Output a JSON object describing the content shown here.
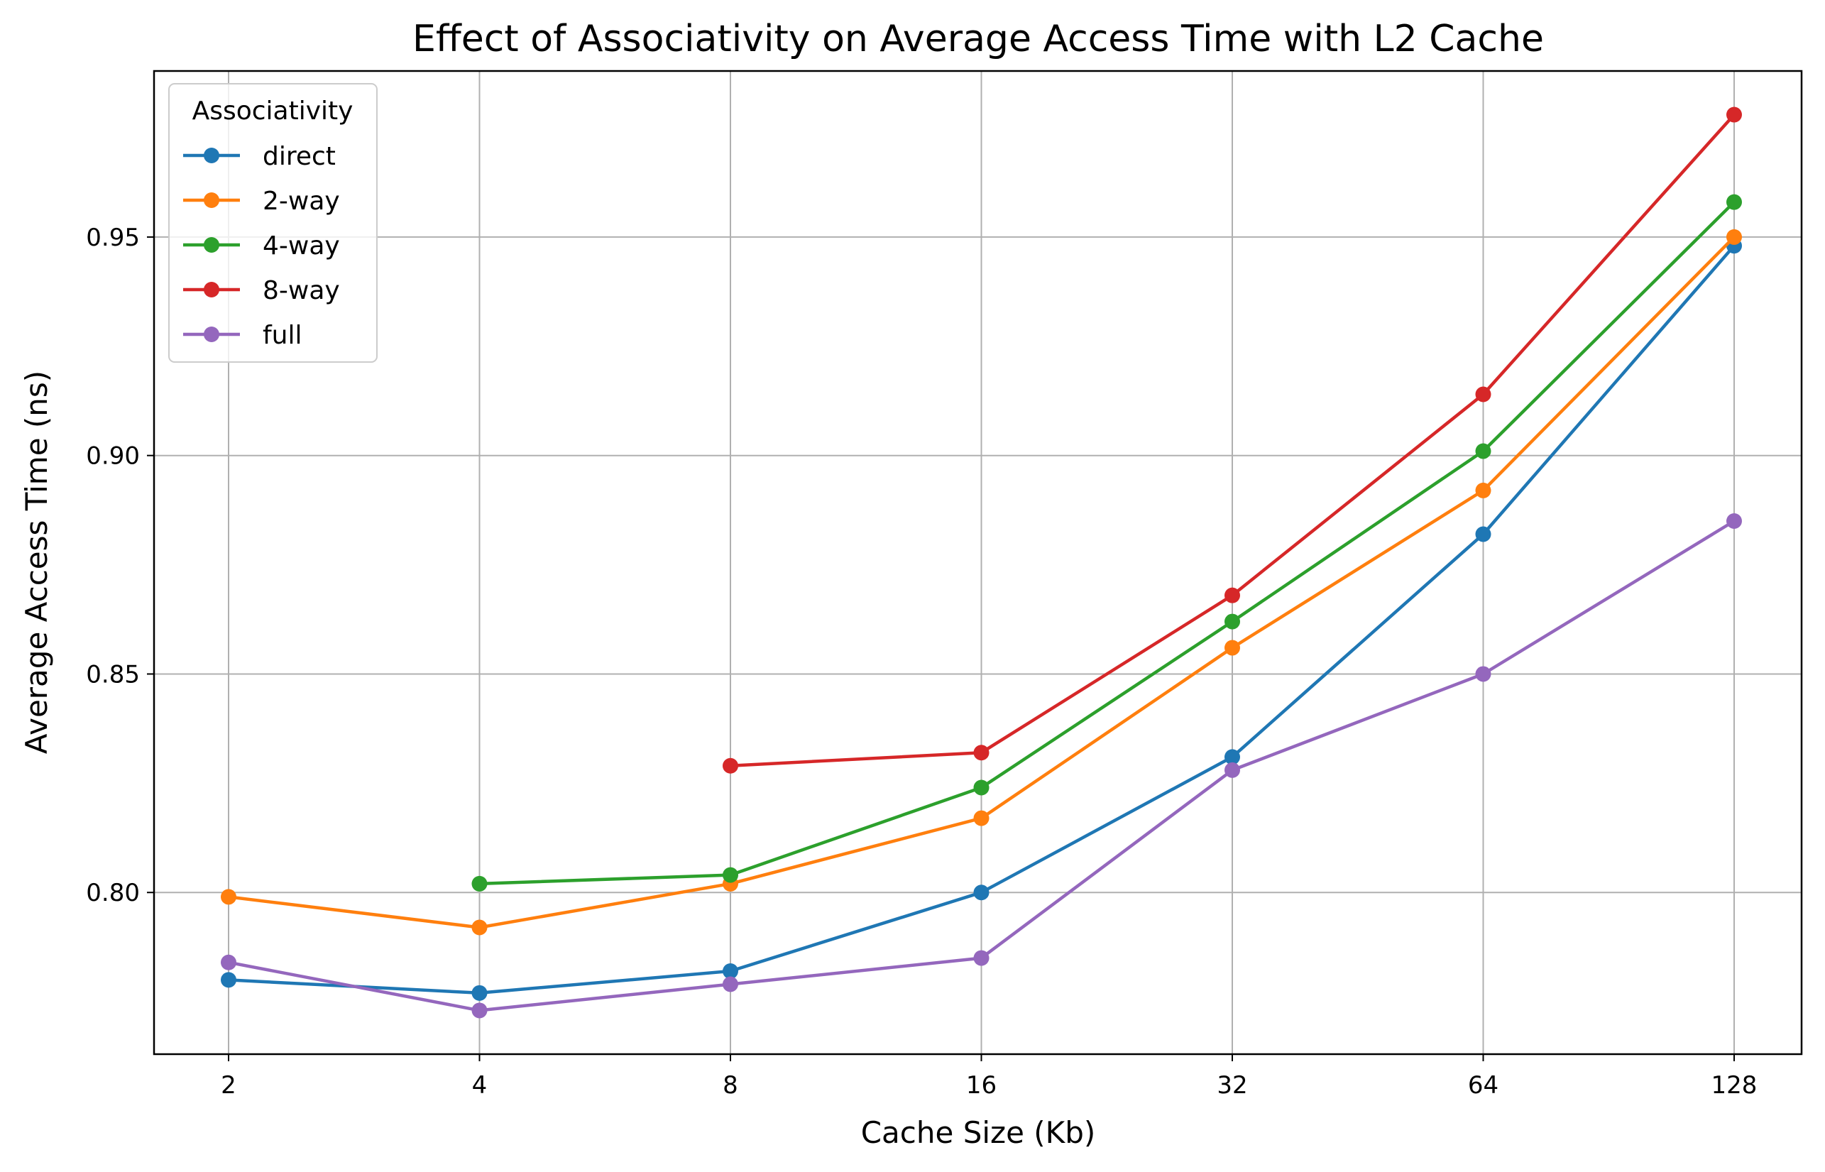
{
  "chart_data": {
    "type": "line",
    "title": "Effect of Associativity on Average Access Time with L2 Cache",
    "xlabel": "Cache Size (Kb)",
    "ylabel": "Average Access Time (ns)",
    "x_scale": "log2",
    "categories": [
      "2",
      "4",
      "8",
      "16",
      "32",
      "64",
      "128"
    ],
    "x": [
      2,
      4,
      8,
      16,
      32,
      64,
      128
    ],
    "yticks": [
      "0.80",
      "0.85",
      "0.90",
      "0.95"
    ],
    "ylim": [
      0.763,
      0.988
    ],
    "grid": true,
    "legend": {
      "title": "Associativity",
      "placement": "upper-left"
    },
    "series": [
      {
        "name": "direct",
        "color": "#1f77b4",
        "values": [
          0.78,
          0.777,
          0.782,
          0.8,
          0.831,
          0.882,
          0.948
        ]
      },
      {
        "name": "2-way",
        "color": "#ff7f0e",
        "values": [
          0.799,
          0.792,
          0.802,
          0.817,
          0.856,
          0.892,
          0.95
        ]
      },
      {
        "name": "4-way",
        "color": "#2ca02c",
        "values": [
          null,
          0.802,
          0.804,
          0.824,
          0.862,
          0.901,
          0.958
        ]
      },
      {
        "name": "8-way",
        "color": "#d62728",
        "values": [
          null,
          null,
          0.829,
          0.832,
          0.868,
          0.914,
          0.978
        ]
      },
      {
        "name": "full",
        "color": "#9467bd",
        "values": [
          0.784,
          0.773,
          0.779,
          0.785,
          0.828,
          0.85,
          0.885
        ]
      }
    ]
  }
}
